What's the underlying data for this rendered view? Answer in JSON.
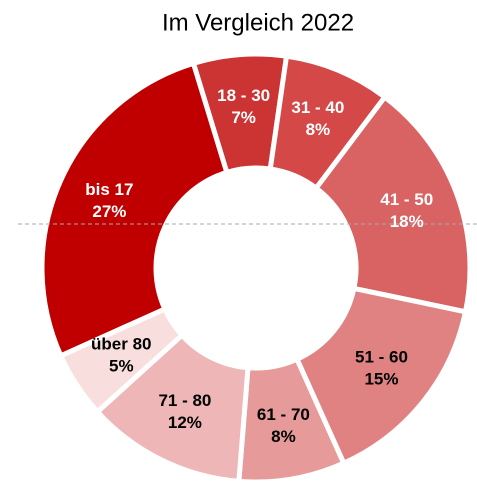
{
  "chart_data": {
    "type": "donut",
    "title": "Im Vergleich 2022",
    "categories": [
      "18 - 30",
      "31 - 40",
      "41 - 50",
      "51 - 60",
      "61 - 70",
      "71 - 80",
      "über 80",
      "bis 17"
    ],
    "values": [
      7,
      8,
      18,
      15,
      8,
      12,
      5,
      27
    ],
    "value_labels": [
      "7%",
      "8%",
      "18%",
      "15%",
      "8%",
      "12%",
      "5%",
      "27%"
    ],
    "colors": [
      "#cc3333",
      "#d44848",
      "#d96262",
      "#e08282",
      "#e69a9a",
      "#eeb6b6",
      "#f9dede",
      "#c00000"
    ]
  }
}
